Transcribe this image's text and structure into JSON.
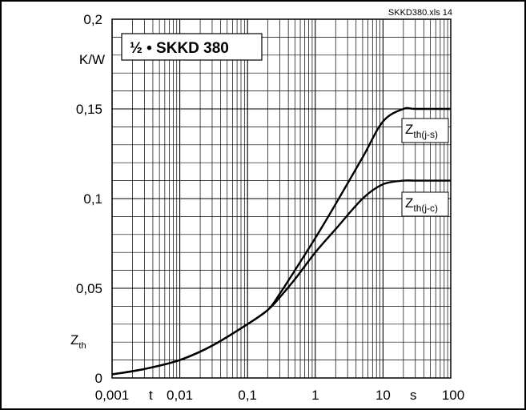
{
  "file_label": "SKKD380.xls 14",
  "chart_data": {
    "type": "line",
    "title": "½ • SKKD 380",
    "x_scale": "log",
    "xlim": [
      0.001,
      100
    ],
    "ylim": [
      0,
      0.2
    ],
    "xlabel": "t",
    "xunit": "s",
    "ylabel": "Z",
    "ylabel_sub": "th",
    "yunit": "K/W",
    "grid": true,
    "x_tick_labels": [
      "0,001",
      "0,01",
      "0,1",
      "1",
      "10",
      "100"
    ],
    "y_tick_labels": [
      "0",
      "0,05",
      "0,1",
      "0,15",
      "0,2"
    ],
    "series": [
      {
        "name": "Z",
        "name_sub": "th(j-s)",
        "x": [
          0.001,
          0.003,
          0.01,
          0.03,
          0.1,
          0.2,
          0.3,
          0.5,
          1,
          2,
          5,
          10,
          20,
          30,
          100
        ],
        "values": [
          0.002,
          0.005,
          0.01,
          0.018,
          0.03,
          0.038,
          0.047,
          0.06,
          0.078,
          0.097,
          0.123,
          0.143,
          0.15,
          0.15,
          0.15
        ]
      },
      {
        "name": "Z",
        "name_sub": "th(j-c)",
        "x": [
          0.001,
          0.003,
          0.01,
          0.03,
          0.1,
          0.2,
          0.3,
          0.5,
          1,
          2,
          5,
          10,
          20,
          30,
          100
        ],
        "values": [
          0.002,
          0.005,
          0.01,
          0.018,
          0.03,
          0.038,
          0.045,
          0.055,
          0.07,
          0.083,
          0.1,
          0.108,
          0.11,
          0.11,
          0.11
        ]
      }
    ]
  }
}
